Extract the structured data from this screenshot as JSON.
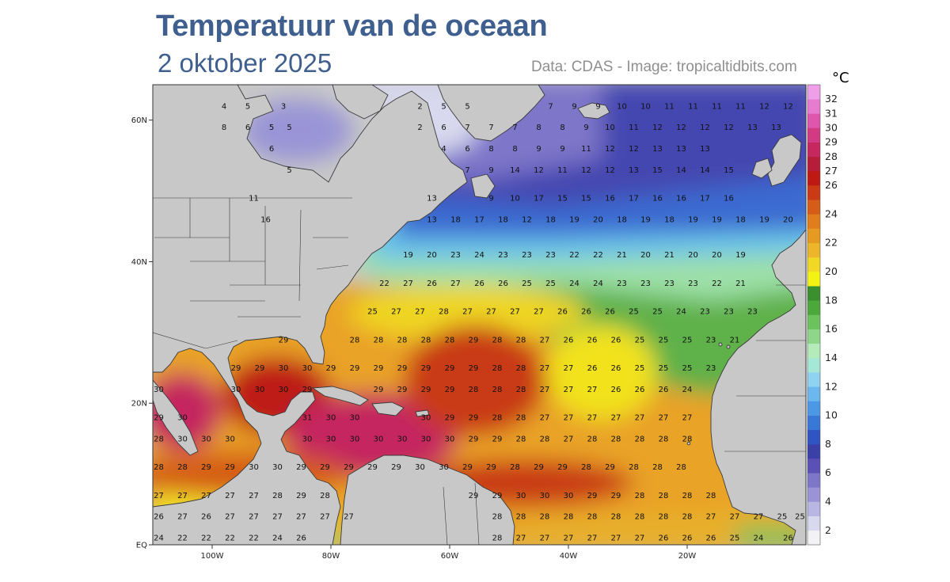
{
  "header": {
    "title": "Temperatuur van de oceaan",
    "subtitle": "2 oktober 2025",
    "credit": "Data: CDAS - Image: tropicaltidbits.com"
  },
  "map": {
    "lon_range": [
      -110,
      0
    ],
    "lat_range": [
      0,
      65
    ],
    "land_color": "#c8c8c8",
    "lat_ticks": [
      {
        "lat": 60,
        "label": "60N"
      },
      {
        "lat": 40,
        "label": "40N"
      },
      {
        "lat": 20,
        "label": "20N"
      },
      {
        "lat": 0,
        "label": "EQ"
      }
    ],
    "lon_ticks": [
      {
        "lon": -100,
        "label": "100W"
      },
      {
        "lon": -80,
        "label": "80W"
      },
      {
        "lon": -60,
        "label": "60W"
      },
      {
        "lon": -40,
        "label": "40W"
      },
      {
        "lon": -20,
        "label": "20W"
      }
    ]
  },
  "colorbar": {
    "unit": "°C",
    "labels": [
      "2",
      "4",
      "6",
      "8",
      "10",
      "12",
      "14",
      "16",
      "18",
      "20",
      "22",
      "24",
      "26",
      "27",
      "28",
      "29",
      "30",
      "31",
      "32"
    ],
    "colors": [
      "#f2f2f4",
      "#d8d8ee",
      "#b9b6e3",
      "#9a94d6",
      "#7d76c9",
      "#5a50b5",
      "#3b3fa8",
      "#2f55c2",
      "#3a78d8",
      "#4c98e6",
      "#6cb8ee",
      "#8fd3f0",
      "#a6e8d6",
      "#b3ecba",
      "#8ed68a",
      "#6cc35e",
      "#4da83c",
      "#3a8f2e",
      "#f3f215",
      "#f1d825",
      "#ecb52a",
      "#e79a22",
      "#e07d1c",
      "#d55d17",
      "#c93a15",
      "#be1a13",
      "#b51d38",
      "#c5275e",
      "#d23a84",
      "#de56ad",
      "#e77bd0",
      "#ee9fe8"
    ]
  },
  "sst_labels": [
    [
      -98,
      62,
      "4"
    ],
    [
      -94,
      62,
      "5"
    ],
    [
      -88,
      62,
      "3"
    ],
    [
      -65,
      62,
      "2"
    ],
    [
      -61,
      62,
      "5"
    ],
    [
      -57,
      62,
      "5"
    ],
    [
      -43,
      62,
      "7"
    ],
    [
      -39,
      62,
      "9"
    ],
    [
      -35,
      62,
      "9"
    ],
    [
      -31,
      62,
      "10"
    ],
    [
      -27,
      62,
      "10"
    ],
    [
      -23,
      62,
      "11"
    ],
    [
      -19,
      62,
      "11"
    ],
    [
      -15,
      62,
      "11"
    ],
    [
      -11,
      62,
      "11"
    ],
    [
      -7,
      62,
      "12"
    ],
    [
      -3,
      62,
      "12"
    ],
    [
      -98,
      59,
      "8"
    ],
    [
      -94,
      59,
      "6"
    ],
    [
      -90,
      59,
      "5"
    ],
    [
      -87,
      59,
      "5"
    ],
    [
      -65,
      59,
      "2"
    ],
    [
      -61,
      59,
      "6"
    ],
    [
      -57,
      59,
      "7"
    ],
    [
      -53,
      59,
      "7"
    ],
    [
      -49,
      59,
      "7"
    ],
    [
      -45,
      59,
      "8"
    ],
    [
      -41,
      59,
      "8"
    ],
    [
      -37,
      59,
      "9"
    ],
    [
      -33,
      59,
      "10"
    ],
    [
      -29,
      59,
      "11"
    ],
    [
      -25,
      59,
      "12"
    ],
    [
      -21,
      59,
      "12"
    ],
    [
      -17,
      59,
      "12"
    ],
    [
      -13,
      59,
      "12"
    ],
    [
      -9,
      59,
      "13"
    ],
    [
      -5,
      59,
      "13"
    ],
    [
      -90,
      56,
      "6"
    ],
    [
      -61,
      56,
      "4"
    ],
    [
      -57,
      56,
      "6"
    ],
    [
      -53,
      56,
      "8"
    ],
    [
      -49,
      56,
      "8"
    ],
    [
      -45,
      56,
      "9"
    ],
    [
      -41,
      56,
      "9"
    ],
    [
      -37,
      56,
      "11"
    ],
    [
      -33,
      56,
      "12"
    ],
    [
      -29,
      56,
      "12"
    ],
    [
      -25,
      56,
      "13"
    ],
    [
      -21,
      56,
      "13"
    ],
    [
      -17,
      56,
      "13"
    ],
    [
      -87,
      53,
      "5"
    ],
    [
      -57,
      53,
      "7"
    ],
    [
      -53,
      53,
      "9"
    ],
    [
      -49,
      53,
      "14"
    ],
    [
      -45,
      53,
      "12"
    ],
    [
      -41,
      53,
      "11"
    ],
    [
      -37,
      53,
      "12"
    ],
    [
      -33,
      53,
      "12"
    ],
    [
      -29,
      53,
      "13"
    ],
    [
      -25,
      53,
      "15"
    ],
    [
      -21,
      53,
      "14"
    ],
    [
      -17,
      53,
      "14"
    ],
    [
      -13,
      53,
      "15"
    ],
    [
      -93,
      49,
      "11"
    ],
    [
      -63,
      49,
      "13"
    ],
    [
      -53,
      49,
      "9"
    ],
    [
      -49,
      49,
      "10"
    ],
    [
      -45,
      49,
      "17"
    ],
    [
      -41,
      49,
      "15"
    ],
    [
      -37,
      49,
      "15"
    ],
    [
      -33,
      49,
      "16"
    ],
    [
      -29,
      49,
      "17"
    ],
    [
      -25,
      49,
      "16"
    ],
    [
      -21,
      49,
      "16"
    ],
    [
      -17,
      49,
      "17"
    ],
    [
      -13,
      49,
      "16"
    ],
    [
      -91,
      46,
      "16"
    ],
    [
      -63,
      46,
      "13"
    ],
    [
      -59,
      46,
      "18"
    ],
    [
      -55,
      46,
      "17"
    ],
    [
      -51,
      46,
      "18"
    ],
    [
      -47,
      46,
      "12"
    ],
    [
      -43,
      46,
      "18"
    ],
    [
      -39,
      46,
      "19"
    ],
    [
      -35,
      46,
      "20"
    ],
    [
      -31,
      46,
      "18"
    ],
    [
      -27,
      46,
      "19"
    ],
    [
      -23,
      46,
      "18"
    ],
    [
      -19,
      46,
      "19"
    ],
    [
      -15,
      46,
      "19"
    ],
    [
      -11,
      46,
      "18"
    ],
    [
      -7,
      46,
      "19"
    ],
    [
      -3,
      46,
      "20"
    ],
    [
      -67,
      41,
      "19"
    ],
    [
      -63,
      41,
      "20"
    ],
    [
      -59,
      41,
      "23"
    ],
    [
      -55,
      41,
      "24"
    ],
    [
      -51,
      41,
      "23"
    ],
    [
      -47,
      41,
      "23"
    ],
    [
      -43,
      41,
      "23"
    ],
    [
      -39,
      41,
      "22"
    ],
    [
      -35,
      41,
      "22"
    ],
    [
      -31,
      41,
      "21"
    ],
    [
      -27,
      41,
      "20"
    ],
    [
      -23,
      41,
      "21"
    ],
    [
      -19,
      41,
      "20"
    ],
    [
      -15,
      41,
      "20"
    ],
    [
      -11,
      41,
      "19"
    ],
    [
      -71,
      37,
      "22"
    ],
    [
      -67,
      37,
      "27"
    ],
    [
      -63,
      37,
      "26"
    ],
    [
      -59,
      37,
      "27"
    ],
    [
      -55,
      37,
      "26"
    ],
    [
      -51,
      37,
      "26"
    ],
    [
      -47,
      37,
      "25"
    ],
    [
      -43,
      37,
      "25"
    ],
    [
      -39,
      37,
      "24"
    ],
    [
      -35,
      37,
      "24"
    ],
    [
      -31,
      37,
      "23"
    ],
    [
      -27,
      37,
      "23"
    ],
    [
      -23,
      37,
      "23"
    ],
    [
      -19,
      37,
      "23"
    ],
    [
      -15,
      37,
      "22"
    ],
    [
      -11,
      37,
      "21"
    ],
    [
      -73,
      33,
      "25"
    ],
    [
      -69,
      33,
      "27"
    ],
    [
      -65,
      33,
      "27"
    ],
    [
      -61,
      33,
      "28"
    ],
    [
      -57,
      33,
      "27"
    ],
    [
      -53,
      33,
      "27"
    ],
    [
      -49,
      33,
      "27"
    ],
    [
      -45,
      33,
      "27"
    ],
    [
      -41,
      33,
      "26"
    ],
    [
      -37,
      33,
      "26"
    ],
    [
      -33,
      33,
      "26"
    ],
    [
      -29,
      33,
      "25"
    ],
    [
      -25,
      33,
      "25"
    ],
    [
      -21,
      33,
      "24"
    ],
    [
      -17,
      33,
      "23"
    ],
    [
      -13,
      33,
      "23"
    ],
    [
      -9,
      33,
      "23"
    ],
    [
      -88,
      29,
      "29"
    ],
    [
      -76,
      29,
      "28"
    ],
    [
      -72,
      29,
      "28"
    ],
    [
      -68,
      29,
      "28"
    ],
    [
      -64,
      29,
      "28"
    ],
    [
      -60,
      29,
      "28"
    ],
    [
      -56,
      29,
      "29"
    ],
    [
      -52,
      29,
      "28"
    ],
    [
      -48,
      29,
      "28"
    ],
    [
      -44,
      29,
      "27"
    ],
    [
      -40,
      29,
      "26"
    ],
    [
      -36,
      29,
      "26"
    ],
    [
      -32,
      29,
      "26"
    ],
    [
      -28,
      29,
      "25"
    ],
    [
      -24,
      29,
      "25"
    ],
    [
      -20,
      29,
      "25"
    ],
    [
      -16,
      29,
      "23"
    ],
    [
      -12,
      29,
      "21"
    ],
    [
      -96,
      25,
      "29"
    ],
    [
      -92,
      25,
      "29"
    ],
    [
      -88,
      25,
      "30"
    ],
    [
      -84,
      25,
      "30"
    ],
    [
      -80,
      25,
      "29"
    ],
    [
      -76,
      25,
      "29"
    ],
    [
      -72,
      25,
      "29"
    ],
    [
      -68,
      25,
      "29"
    ],
    [
      -64,
      25,
      "29"
    ],
    [
      -60,
      25,
      "29"
    ],
    [
      -56,
      25,
      "29"
    ],
    [
      -52,
      25,
      "28"
    ],
    [
      -48,
      25,
      "28"
    ],
    [
      -44,
      25,
      "27"
    ],
    [
      -40,
      25,
      "27"
    ],
    [
      -36,
      25,
      "26"
    ],
    [
      -32,
      25,
      "26"
    ],
    [
      -28,
      25,
      "25"
    ],
    [
      -24,
      25,
      "25"
    ],
    [
      -20,
      25,
      "25"
    ],
    [
      -16,
      25,
      "23"
    ],
    [
      -109,
      22,
      "30"
    ],
    [
      -96,
      22,
      "30"
    ],
    [
      -92,
      22,
      "30"
    ],
    [
      -88,
      22,
      "30"
    ],
    [
      -84,
      22,
      "29"
    ],
    [
      -72,
      22,
      "29"
    ],
    [
      -68,
      22,
      "29"
    ],
    [
      -64,
      22,
      "29"
    ],
    [
      -60,
      22,
      "29"
    ],
    [
      -56,
      22,
      "28"
    ],
    [
      -52,
      22,
      "28"
    ],
    [
      -48,
      22,
      "28"
    ],
    [
      -44,
      22,
      "27"
    ],
    [
      -40,
      22,
      "27"
    ],
    [
      -36,
      22,
      "27"
    ],
    [
      -32,
      22,
      "26"
    ],
    [
      -28,
      22,
      "26"
    ],
    [
      -24,
      22,
      "26"
    ],
    [
      -20,
      22,
      "24"
    ],
    [
      -109,
      18,
      "29"
    ],
    [
      -105,
      18,
      "30"
    ],
    [
      -84,
      18,
      "31"
    ],
    [
      -80,
      18,
      "30"
    ],
    [
      -76,
      18,
      "30"
    ],
    [
      -64,
      18,
      "30"
    ],
    [
      -60,
      18,
      "29"
    ],
    [
      -56,
      18,
      "29"
    ],
    [
      -52,
      18,
      "28"
    ],
    [
      -48,
      18,
      "28"
    ],
    [
      -44,
      18,
      "27"
    ],
    [
      -40,
      18,
      "27"
    ],
    [
      -36,
      18,
      "27"
    ],
    [
      -32,
      18,
      "27"
    ],
    [
      -28,
      18,
      "27"
    ],
    [
      -24,
      18,
      "27"
    ],
    [
      -20,
      18,
      "27"
    ],
    [
      -109,
      15,
      "28"
    ],
    [
      -105,
      15,
      "30"
    ],
    [
      -101,
      15,
      "30"
    ],
    [
      -97,
      15,
      "30"
    ],
    [
      -84,
      15,
      "30"
    ],
    [
      -80,
      15,
      "30"
    ],
    [
      -76,
      15,
      "30"
    ],
    [
      -72,
      15,
      "30"
    ],
    [
      -68,
      15,
      "30"
    ],
    [
      -64,
      15,
      "30"
    ],
    [
      -60,
      15,
      "30"
    ],
    [
      -56,
      15,
      "29"
    ],
    [
      -52,
      15,
      "29"
    ],
    [
      -48,
      15,
      "28"
    ],
    [
      -44,
      15,
      "28"
    ],
    [
      -40,
      15,
      "27"
    ],
    [
      -36,
      15,
      "28"
    ],
    [
      -32,
      15,
      "28"
    ],
    [
      -28,
      15,
      "28"
    ],
    [
      -24,
      15,
      "28"
    ],
    [
      -20,
      15,
      "28"
    ],
    [
      -109,
      11,
      "28"
    ],
    [
      -105,
      11,
      "28"
    ],
    [
      -101,
      11,
      "29"
    ],
    [
      -97,
      11,
      "29"
    ],
    [
      -93,
      11,
      "30"
    ],
    [
      -89,
      11,
      "30"
    ],
    [
      -85,
      11,
      "29"
    ],
    [
      -81,
      11,
      "29"
    ],
    [
      -77,
      11,
      "29"
    ],
    [
      -73,
      11,
      "29"
    ],
    [
      -69,
      11,
      "29"
    ],
    [
      -65,
      11,
      "30"
    ],
    [
      -61,
      11,
      "30"
    ],
    [
      -57,
      11,
      "29"
    ],
    [
      -53,
      11,
      "29"
    ],
    [
      -49,
      11,
      "28"
    ],
    [
      -45,
      11,
      "29"
    ],
    [
      -41,
      11,
      "29"
    ],
    [
      -37,
      11,
      "28"
    ],
    [
      -33,
      11,
      "29"
    ],
    [
      -29,
      11,
      "28"
    ],
    [
      -25,
      11,
      "28"
    ],
    [
      -21,
      11,
      "28"
    ],
    [
      -109,
      7,
      "27"
    ],
    [
      -105,
      7,
      "27"
    ],
    [
      -101,
      7,
      "27"
    ],
    [
      -97,
      7,
      "27"
    ],
    [
      -93,
      7,
      "27"
    ],
    [
      -89,
      7,
      "28"
    ],
    [
      -85,
      7,
      "29"
    ],
    [
      -81,
      7,
      "28"
    ],
    [
      -56,
      7,
      "29"
    ],
    [
      -52,
      7,
      "29"
    ],
    [
      -48,
      7,
      "30"
    ],
    [
      -44,
      7,
      "30"
    ],
    [
      -40,
      7,
      "30"
    ],
    [
      -36,
      7,
      "29"
    ],
    [
      -32,
      7,
      "29"
    ],
    [
      -28,
      7,
      "28"
    ],
    [
      -24,
      7,
      "28"
    ],
    [
      -20,
      7,
      "28"
    ],
    [
      -16,
      7,
      "28"
    ],
    [
      -109,
      4,
      "26"
    ],
    [
      -105,
      4,
      "27"
    ],
    [
      -101,
      4,
      "26"
    ],
    [
      -97,
      4,
      "27"
    ],
    [
      -93,
      4,
      "27"
    ],
    [
      -89,
      4,
      "27"
    ],
    [
      -85,
      4,
      "27"
    ],
    [
      -81,
      4,
      "27"
    ],
    [
      -77,
      4,
      "27"
    ],
    [
      -52,
      4,
      "28"
    ],
    [
      -48,
      4,
      "28"
    ],
    [
      -44,
      4,
      "28"
    ],
    [
      -40,
      4,
      "28"
    ],
    [
      -36,
      4,
      "28"
    ],
    [
      -32,
      4,
      "28"
    ],
    [
      -28,
      4,
      "28"
    ],
    [
      -24,
      4,
      "28"
    ],
    [
      -20,
      4,
      "28"
    ],
    [
      -16,
      4,
      "27"
    ],
    [
      -12,
      4,
      "27"
    ],
    [
      -8,
      4,
      "27"
    ],
    [
      -4,
      4,
      "25"
    ],
    [
      -1,
      4,
      "25"
    ],
    [
      -109,
      1,
      "24"
    ],
    [
      -105,
      1,
      "22"
    ],
    [
      -101,
      1,
      "22"
    ],
    [
      -97,
      1,
      "22"
    ],
    [
      -93,
      1,
      "22"
    ],
    [
      -89,
      1,
      "24"
    ],
    [
      -85,
      1,
      "26"
    ],
    [
      -52,
      1,
      "28"
    ],
    [
      -48,
      1,
      "27"
    ],
    [
      -44,
      1,
      "27"
    ],
    [
      -40,
      1,
      "27"
    ],
    [
      -36,
      1,
      "27"
    ],
    [
      -32,
      1,
      "27"
    ],
    [
      -28,
      1,
      "27"
    ],
    [
      -24,
      1,
      "26"
    ],
    [
      -20,
      1,
      "26"
    ],
    [
      -16,
      1,
      "26"
    ],
    [
      -12,
      1,
      "25"
    ],
    [
      -8,
      1,
      "24"
    ],
    [
      -3,
      1,
      "26"
    ]
  ]
}
